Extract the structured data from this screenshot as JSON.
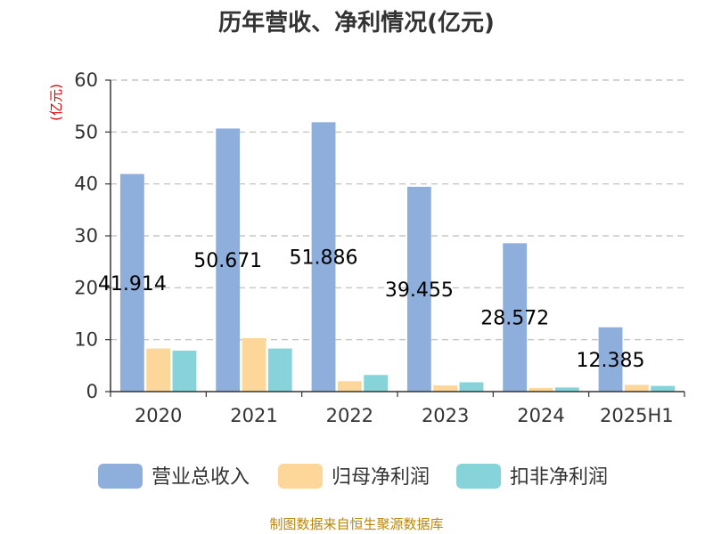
{
  "chart_data": {
    "type": "bar",
    "title": "历年营收、净利情况(亿元)",
    "ylabel": "(亿元)",
    "xlabel": "",
    "categories": [
      "2020",
      "2021",
      "2022",
      "2023",
      "2024",
      "2025H1"
    ],
    "ylim": [
      0,
      60
    ],
    "yticks": [
      0,
      10,
      20,
      30,
      40,
      50,
      60
    ],
    "grid": true,
    "legend_position": "bottom",
    "series": [
      {
        "name": "营业总收入",
        "color": "#8eaedb",
        "values": [
          41.914,
          50.671,
          51.886,
          39.455,
          28.572,
          12.385
        ],
        "labels": [
          "41.914",
          "50.671",
          "51.886",
          "39.455",
          "28.572",
          "12.385"
        ]
      },
      {
        "name": "归母净利润",
        "color": "#fdd699",
        "values": [
          8.3,
          10.3,
          2.0,
          1.2,
          0.7,
          1.3
        ]
      },
      {
        "name": "扣非净利润",
        "color": "#86d4d9",
        "values": [
          7.9,
          8.3,
          3.2,
          1.8,
          0.8,
          1.1
        ]
      }
    ],
    "source": "制图数据来自恒生聚源数据库"
  }
}
